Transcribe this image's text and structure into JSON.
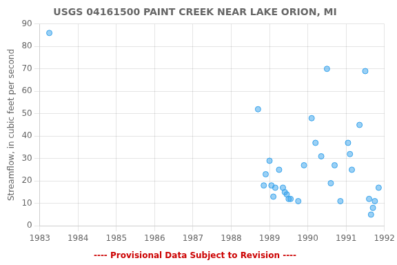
{
  "chart_data": {
    "type": "scatter",
    "title": "USGS 04161500 PAINT CREEK NEAR LAKE ORION, MI",
    "ylabel": "Streamflow, in cubic feet per second",
    "x": [
      1983.25,
      1988.7,
      1988.85,
      1988.9,
      1989.0,
      1989.05,
      1989.1,
      1989.15,
      1989.25,
      1989.35,
      1989.4,
      1989.45,
      1989.5,
      1989.55,
      1989.75,
      1989.9,
      1990.1,
      1990.2,
      1990.35,
      1990.5,
      1990.6,
      1990.7,
      1990.85,
      1991.05,
      1991.1,
      1991.15,
      1991.35,
      1991.5,
      1991.6,
      1991.65,
      1991.7,
      1991.75,
      1991.85
    ],
    "values": [
      86,
      52,
      18,
      23,
      29,
      18,
      13,
      17,
      25,
      17,
      15,
      14,
      12,
      12,
      11,
      27,
      48,
      37,
      31,
      70,
      19,
      27,
      11,
      37,
      32,
      25,
      45,
      69,
      12,
      5,
      8,
      11,
      17
    ],
    "xlim": [
      1983,
      1992
    ],
    "ylim": [
      0,
      90
    ],
    "xticks": [
      1983,
      1984,
      1985,
      1986,
      1987,
      1988,
      1989,
      1990,
      1991,
      1992
    ],
    "yticks": [
      0,
      10,
      20,
      30,
      40,
      50,
      60,
      70,
      80,
      90
    ],
    "grid": true,
    "annotations": [
      {
        "text": "---- Provisional Data Subject to Revision ----",
        "color": "#cc0000"
      }
    ]
  }
}
